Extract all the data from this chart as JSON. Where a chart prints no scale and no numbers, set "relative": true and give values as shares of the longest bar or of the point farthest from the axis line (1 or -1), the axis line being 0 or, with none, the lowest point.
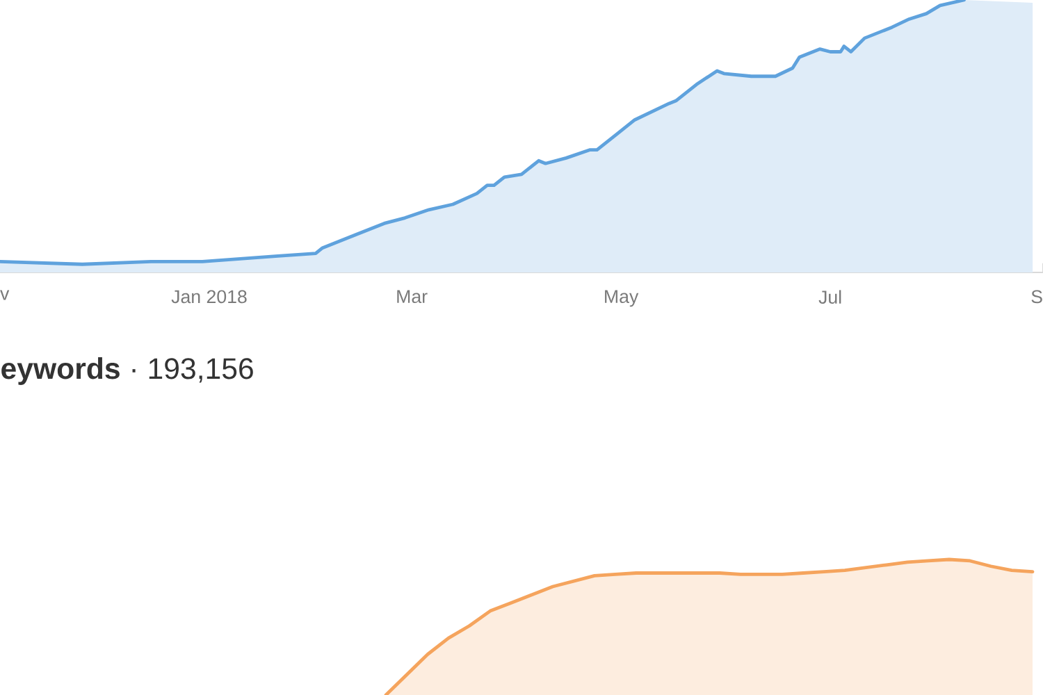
{
  "chart_data": [
    {
      "type": "area",
      "relative": true,
      "color": "#5fa2dd",
      "x": [
        "2017-11-01",
        "2017-11-25",
        "2017-12-15",
        "2017-12-30",
        "2018-01-10",
        "2018-01-21",
        "2018-02-01",
        "2018-02-03",
        "2018-02-11",
        "2018-02-21",
        "2018-02-27",
        "2018-03-06",
        "2018-03-13",
        "2018-03-20",
        "2018-03-23",
        "2018-03-25",
        "2018-03-28",
        "2018-04-02",
        "2018-04-07",
        "2018-04-09",
        "2018-04-15",
        "2018-04-22",
        "2018-04-24",
        "2018-04-30",
        "2018-05-05",
        "2018-05-15",
        "2018-05-17",
        "2018-05-23",
        "2018-05-29",
        "2018-05-31",
        "2018-06-08",
        "2018-06-15",
        "2018-06-20",
        "2018-06-22",
        "2018-06-28",
        "2018-07-01",
        "2018-07-04",
        "2018-07-05",
        "2018-07-07",
        "2018-07-11",
        "2018-07-19",
        "2018-07-24",
        "2018-07-29",
        "2018-08-02",
        "2018-08-09",
        "2018-08-19",
        "2018-08-29"
      ],
      "values": [
        0.04,
        0.03,
        0.04,
        0.04,
        0.05,
        0.06,
        0.07,
        0.09,
        0.13,
        0.18,
        0.2,
        0.23,
        0.25,
        0.29,
        0.32,
        0.32,
        0.35,
        0.36,
        0.41,
        0.4,
        0.42,
        0.45,
        0.45,
        0.51,
        0.56,
        0.62,
        0.63,
        0.69,
        0.74,
        0.73,
        0.72,
        0.72,
        0.75,
        0.79,
        0.82,
        0.81,
        0.81,
        0.83,
        0.81,
        0.86,
        0.9,
        0.93,
        0.95,
        0.98,
        1,
        null,
        0.99
      ],
      "xlim": [
        "2017-11-01",
        "2018-09-01"
      ],
      "xticks": [
        {
          "value": "2017-11-01",
          "label": "v"
        },
        {
          "value": "2018-01-01",
          "label": "Jan 2018"
        },
        {
          "value": "2018-03-01",
          "label": "Mar"
        },
        {
          "value": "2018-05-01",
          "label": "May"
        },
        {
          "value": "2018-07-01",
          "label": "Jul"
        },
        {
          "value": "2018-09-01",
          "label": "S"
        }
      ]
    },
    {
      "type": "area",
      "relative": true,
      "color": "#f5a45d",
      "title": "**eywords** · 193,156",
      "categories": [
        null,
        null,
        null,
        null,
        null,
        null,
        null,
        null,
        null,
        null,
        null,
        null,
        null,
        null,
        null,
        null,
        null,
        null,
        null,
        null,
        null,
        null,
        null,
        null,
        null,
        null,
        null,
        null,
        null,
        null,
        null,
        null,
        null,
        null,
        null,
        null,
        null,
        null,
        null,
        null,
        null,
        null,
        null,
        null,
        null,
        null,
        null,
        null,
        null,
        null
      ],
      "values": [
        null,
        null,
        null,
        null,
        null,
        null,
        null,
        null,
        null,
        null,
        null,
        null,
        null,
        null,
        null,
        null,
        null,
        null,
        0,
        0.15,
        0.3,
        0.42,
        0.51,
        0.62,
        0.68,
        0.74,
        0.8,
        0.84,
        0.88,
        0.89,
        0.9,
        0.9,
        0.9,
        0.9,
        0.9,
        0.89,
        0.89,
        0.89,
        0.9,
        0.91,
        0.92,
        0.94,
        0.96,
        0.98,
        0.99,
        1,
        0.99,
        0.95,
        0.92,
        0.91
      ]
    }
  ]
}
